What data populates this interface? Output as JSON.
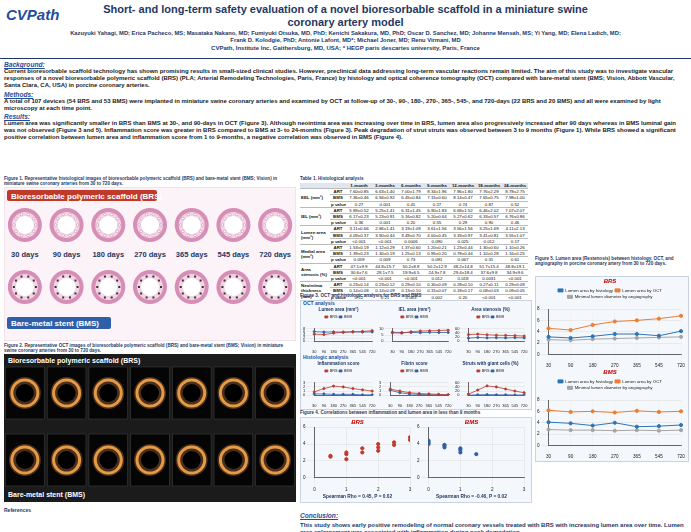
{
  "header": {
    "logo": "CVPath",
    "title": "Short- and long-term safety evaluation of a novel bioresorbable scaffold in a miniature swine coronary artery model",
    "authors": "Kazuyuki Yahagi, MD; Erica Pacheco, MS; Masataka Nakano, MD; Fumiyuki Otsuka, MD, PhD; Kenichi Sakakura, MD, PhD; Oscar D. Sanchez, MD; Johanne Mensah, MS; Yi Yang, MD; Elena Ladich, MD; Frank D. Kolodgie, PhD; Antonie Lafont, MD*; Michael Joner, MD; Renu Virmani, MD",
    "affiliation": "CVPath, Institute Inc, Gaithersburg, MD, USA; * HEGP paris descartes university, Paris, France"
  },
  "sections": [
    {
      "heading": "Background:",
      "text": "Current bioresorbable scaffold technology has shown promising results in small-sized clinical studies. However, preclinical data addressing long-term vascular reactions remain limited. The aim of this study was to investigate vascular responses of a novel bioresorbable polymeric scaffold (BRS) (PLA; Arterial Remodeling Technologies, Paris, France) by histology and optical coherence tomography (OCT) compared with bare-metal stent (BMS; Vision, Abbott Vascular, Santa Clara, CA, USA) in porcine coronary arteries."
    },
    {
      "heading": "Methods:",
      "text": "A total of 107 devices (54 BRS and 53 BMS) were implanted in miniature swine coronary arteries and examined by OCT at follow-up of 30-, 90-, 180-, 270-, 365-, 545-, and 720-days (22 BRS and 20 BMS) and all were examined by light microscopy at each time point."
    },
    {
      "heading": "Results:",
      "text": "Lumen area was significantly smaller in BRS than BMS at 30-, and 90-days in OCT (Figure 3). Although neointima area was increasing over time in BRS, lumen area also progressively increased after 90 days whereas in BMS luminal gain was not observed (Figure 3 and 5). Inflammation score was greater in BRS compared to BMS at 3- to 24-months (Figure 3). Peak degradation of strut struts was observed between 3 to 9 months (Figure 1). While BRS showed a significant positive correlation between lumen area and inflammation score from 1 to 9-months, a negative correlation was observed in BMS (Figure 4)."
    }
  ],
  "figure1": {
    "caption": "Figure 1. Representative histological images of bioresorbable polymeric scaffold (BRS) and bare-metal stent (BMS; Vision) in miniature swine coronary arteries from 30 to 720 days.",
    "top_label": "Bioresorbable polymeric scaffold (BRS)",
    "bottom_label": "Bare-metal stent (BMS)",
    "timepoints": [
      "30 days",
      "90 days",
      "180 days",
      "270 days",
      "365 days",
      "545 days",
      "720 days"
    ]
  },
  "figure2": {
    "caption": "Figure 2. Representative OCT images of bioresorbable polymeric scaffold (BRS) and bare-metal stent (BMS; Vision) in miniature swine coronary arteries from 30 to 720 days.",
    "top_label": "Bioresorbable polymeric scaffold (BRS)",
    "bottom_label": "Bare-metal stent (BMS)"
  },
  "table1": {
    "caption": "Table 1. Histological analysis",
    "columns": [
      "1-month",
      "3-months",
      "6-months",
      "9-months",
      "12-months",
      "18-months",
      "24-months"
    ],
    "rows": [
      {
        "label": "EEL (mm²)",
        "sub": [
          {
            "group": "ART",
            "cells": [
              "7.60±0.85",
              "6.63±1.40",
              "7.00±1.79",
              "8.34±1.96",
              "7.96±1.80",
              "7.76±2.29",
              "8.78±2.75"
            ]
          },
          {
            "group": "BMS",
            "cells": [
              "7.36±0.46",
              "6.94±0.92",
              "6.45±0.84",
              "7.15±0.60",
              "8.14±0.47",
              "7.65±0.75",
              "7.98±1.00"
            ]
          },
          {
            "group": "p value",
            "cells": [
              "0.27",
              "0.001",
              "0.41",
              "0.27",
              "0.74",
              "0.87",
              "0.52"
            ]
          }
        ]
      },
      {
        "label": "IEL (mm²)",
        "sub": [
          {
            "group": "ART",
            "cells": [
              "5.89±0.52",
              "5.25±1.41",
              "6.31±1.45",
              "6.90±1.83",
              "6.68±1.52",
              "6.46±2.02",
              "7.07±2.07"
            ]
          },
          {
            "group": "BMS",
            "cells": [
              "6.17±0.23",
              "5.23±0.91",
              "5.16±0.82",
              "5.20±0.64",
              "5.27±0.62",
              "6.33±0.57",
              "6.76±0.86"
            ]
          },
          {
            "group": "p value",
            "cells": [
              "0.36",
              "0.001",
              "0.20",
              "0.55",
              "0.29",
              "0.90",
              "0.46"
            ]
          }
        ]
      },
      {
        "label": "Lumen area (mm²)",
        "sub": [
          {
            "group": "ART",
            "cells": [
              "3.11±0.66",
              "2.86±1.41",
              "3.19±1.09",
              "3.61±1.56",
              "3.56±1.56",
              "3.25±1.69",
              "4.11±2.13"
            ]
          },
          {
            "group": "BMS",
            "cells": [
              "4.09±0.37",
              "3.90±0.44",
              "3.49±0.70",
              "4.00±0.45",
              "3.33±0.97",
              "3.41±0.81",
              "3.55±1.07"
            ]
          },
          {
            "group": "p value",
            "cells": [
              "<0.001",
              "<0.001",
              "0.0006",
              "0.090",
              "0.025",
              "0.012",
              "0.17"
            ]
          }
        ]
      },
      {
        "label": "Medial area (mm²)",
        "sub": [
          {
            "group": "ART",
            "cells": [
              "1.53±0.19",
              "1.12±0.29",
              "1.37±0.60",
              "1.20±0.21",
              "1.23±0.44",
              "1.30±0.60",
              "1.10±0.26"
            ]
          },
          {
            "group": "BMS",
            "cells": [
              "1.39±0.23",
              "1.30±0.19",
              "1.25±0.13",
              "0.95±0.20",
              "0.78±0.44",
              "1.10±0.28",
              "1.16±0.25"
            ]
          },
          {
            "group": "p value",
            "cells": [
              "0.059",
              "0.009",
              "0.73",
              "0.091",
              "0.067",
              "0.31",
              "0.61"
            ]
          }
        ]
      },
      {
        "label": "Area stenosis (%)",
        "sub": [
          {
            "group": "ART",
            "cells": [
              "47.1±9.9",
              "44.8±15.7",
              "50.2±8.8",
              "50.2±12.9",
              "48.2±14.8",
              "51.7±15.4",
              "48.8±19.1"
            ]
          },
          {
            "group": "BMS",
            "cells": [
              "30.6±7.6",
              "28.1±7.5",
              "19.9±6.5",
              "24.9±7.8",
              "29.4±18.4",
              "37.6±9.8",
              "34.9±9.6"
            ]
          },
          {
            "group": "p value",
            "cells": [
              "<0.001",
              "<0.001",
              "<0.001",
              "0.012",
              "0.018",
              "0.0031",
              "<0.001"
            ]
          }
        ]
      },
      {
        "label": "Neointima thickness (mm)",
        "sub": [
          {
            "group": "ART",
            "cells": [
              "0.23±0.14",
              "0.23±0.12",
              "0.29±0.10",
              "0.30±0.09",
              "0.28±0.10",
              "0.27±0.11",
              "0.29±0.09"
            ]
          },
          {
            "group": "BMS",
            "cells": [
              "0.14±0.08",
              "0.14±0.09",
              "0.13±0.10",
              "0.15±0.07",
              "0.18±0.17",
              "0.08±0.03",
              "0.09±0.05"
            ]
          },
          {
            "group": "p value",
            "cells": [
              "0.12",
              "0.21",
              "0.063",
              "0.002",
              "0.20",
              "<0.001",
              "<0.001"
            ]
          }
        ]
      }
    ]
  },
  "figure3": {
    "caption": "Figure 3. OCT and histologic analysis for BRS and BMS",
    "oct_label": "OCT analysis",
    "histo_label": "Histologic analysis"
  },
  "figure4": {
    "caption": "Figure 4. Correlations between inflammation and lumen area in less than 9 months"
  },
  "figure5": {
    "caption": "Figure 5. Lumen area (Restenosis) between histology, OCT, and angiography in porcine coronary artery from 30 to 720 days."
  },
  "references": {
    "heading": "References"
  },
  "conclusion": {
    "heading": "Conclusion:",
    "text": "This study shows early positive remodeling of normal coronary vessels treated with BRS with increasing lumen area over time. Lumen area enlargement was associated with inflammation during peak degradation."
  },
  "chart_data": [
    {
      "type": "line",
      "title": "Lumen area (mm²)",
      "categories": [
        "30",
        "90",
        "180",
        "270",
        "365",
        "545",
        "720"
      ],
      "series": [
        {
          "name": "BRS",
          "color": "#c0392b",
          "values": [
            4.6,
            4.3,
            5.2,
            5.8,
            6.0,
            6.3,
            6.8
          ]
        },
        {
          "name": "BMS",
          "color": "#2e5fa8",
          "values": [
            6.2,
            5.9,
            6.0,
            5.8,
            6.1,
            5.9,
            6.0
          ]
        }
      ],
      "ylim": [
        0,
        8
      ],
      "yticks": [
        0,
        2,
        4,
        6,
        8
      ],
      "grid": true,
      "legend": "top"
    },
    {
      "type": "line",
      "title": "IEL area (mm²)",
      "categories": [
        "30",
        "90",
        "180",
        "270",
        "365",
        "545",
        "720"
      ],
      "series": [
        {
          "name": "BRS",
          "color": "#c0392b",
          "values": [
            6.8,
            6.5,
            7.6,
            8.2,
            8.4,
            8.6,
            9.0
          ]
        },
        {
          "name": "BMS",
          "color": "#2e5fa8",
          "values": [
            7.2,
            7.0,
            7.1,
            6.9,
            7.2,
            7.0,
            7.1
          ]
        }
      ],
      "ylim": [
        0,
        10
      ],
      "yticks": [
        0,
        5,
        10
      ],
      "grid": true,
      "legend": "top"
    },
    {
      "type": "line",
      "title": "Area stenosis (%)",
      "categories": [
        "30",
        "90",
        "180",
        "270",
        "365",
        "545",
        "720"
      ],
      "series": [
        {
          "name": "BRS",
          "color": "#c0392b",
          "values": [
            32,
            34,
            31,
            29,
            28,
            27,
            25
          ]
        },
        {
          "name": "BMS",
          "color": "#2e5fa8",
          "values": [
            15,
            18,
            16,
            17,
            16,
            17,
            16
          ]
        }
      ],
      "ylim": [
        0,
        60
      ],
      "yticks": [
        0,
        20,
        40,
        60
      ],
      "grid": true,
      "legend": "top"
    },
    {
      "type": "line",
      "title": "Inflammation score",
      "categories": [
        "30",
        "90",
        "180",
        "270",
        "365",
        "545",
        "720"
      ],
      "series": [
        {
          "name": "BRS",
          "color": "#c0392b",
          "values": [
            0.8,
            1.6,
            2.2,
            2.0,
            1.6,
            1.3,
            1.0
          ]
        },
        {
          "name": "BMS",
          "color": "#2e5fa8",
          "values": [
            0.3,
            0.3,
            0.2,
            0.2,
            0.2,
            0.1,
            0.1
          ]
        }
      ],
      "ylim": [
        0,
        3
      ],
      "yticks": [
        0,
        1,
        2,
        3
      ],
      "grid": true,
      "legend": "top"
    },
    {
      "type": "line",
      "title": "Fibrin score",
      "categories": [
        "30",
        "90",
        "180",
        "270",
        "365",
        "545",
        "720"
      ],
      "series": [
        {
          "name": "BRS",
          "color": "#c0392b",
          "values": [
            1.5,
            1.0,
            0.6,
            0.4,
            0.3,
            0.2,
            0.1
          ]
        },
        {
          "name": "BMS",
          "color": "#2e5fa8",
          "values": [
            1.2,
            0.6,
            0.3,
            0.2,
            0.1,
            0.1,
            0.1
          ]
        }
      ],
      "ylim": [
        0,
        3
      ],
      "yticks": [
        0,
        1,
        2,
        3
      ],
      "grid": true,
      "legend": "top"
    },
    {
      "type": "line",
      "title": "Struts with giant cells (%)",
      "categories": [
        "30",
        "90",
        "180",
        "270",
        "365",
        "545",
        "720"
      ],
      "series": [
        {
          "name": "BRS",
          "color": "#c0392b",
          "values": [
            5,
            25,
            45,
            40,
            30,
            20,
            12
          ]
        },
        {
          "name": "BMS",
          "color": "#2e5fa8",
          "values": [
            0,
            2,
            3,
            2,
            2,
            1,
            1
          ]
        }
      ],
      "ylim": [
        0,
        60
      ],
      "yticks": [
        0,
        20,
        40,
        60
      ],
      "grid": true,
      "legend": "top"
    },
    {
      "type": "scatter",
      "title": "BRS",
      "annotation": "Spearman Rho = 0.45, P = 0.02",
      "series": [
        {
          "color": "#c0392b",
          "marker": "circle",
          "x": [
            0.5,
            1,
            1,
            1.5,
            2,
            2,
            2.5,
            3,
            1,
            0.5,
            1.5,
            2.5,
            3,
            2
          ],
          "values": [
            2.5,
            3,
            2.8,
            3.5,
            3.2,
            4,
            4.2,
            4.8,
            2.2,
            2.6,
            3.0,
            3.9,
            4.5,
            3.6
          ]
        }
      ],
      "xlim": [
        0,
        3
      ],
      "xticks": [
        0,
        1,
        2,
        3
      ],
      "ylim": [
        0,
        6
      ],
      "yticks": [
        0,
        2,
        4,
        6
      ],
      "grid": true
    },
    {
      "type": "scatter",
      "title": "BMS",
      "annotation": "Spearman Rho = -0.46, P = 0.02",
      "series": [
        {
          "color": "#2e5fa8",
          "marker": "circle",
          "x": [
            0,
            0,
            0.5,
            0.5,
            1,
            1,
            1.5,
            0,
            0.5,
            1
          ],
          "values": [
            4.2,
            4.0,
            3.9,
            3.6,
            3.3,
            3.0,
            2.8,
            4.4,
            3.8,
            3.5
          ]
        }
      ],
      "xlim": [
        0,
        3
      ],
      "xticks": [
        0,
        1,
        2,
        3
      ],
      "ylim": [
        0,
        6
      ],
      "yticks": [
        0,
        2,
        4,
        6
      ],
      "grid": true
    },
    {
      "type": "line",
      "title": "BRS",
      "categories": [
        "30",
        "90",
        "180",
        "270",
        "365",
        "545",
        "720"
      ],
      "series": [
        {
          "name": "Lumen area by histology",
          "color": "#2e75b6",
          "values": [
            3.1,
            2.9,
            3.2,
            3.6,
            3.6,
            3.3,
            4.1
          ]
        },
        {
          "name": "Lumen area by OCT",
          "color": "#ed7d31",
          "values": [
            4.6,
            4.3,
            5.2,
            5.8,
            6.0,
            6.3,
            6.8
          ]
        },
        {
          "name": "Minimal lumen diameter by angiography",
          "color": "#a5a5a5",
          "values": [
            2.6,
            2.5,
            2.7,
            2.8,
            2.9,
            3.0,
            3.1
          ]
        }
      ],
      "ylim": [
        0,
        8
      ],
      "yticks": [
        0,
        2,
        4,
        6,
        8
      ],
      "grid": true,
      "legend": "top"
    },
    {
      "type": "line",
      "title": "BMS",
      "categories": [
        "30",
        "90",
        "180",
        "270",
        "365",
        "545",
        "720"
      ],
      "series": [
        {
          "name": "Lumen area by histology",
          "color": "#2e75b6",
          "values": [
            4.1,
            3.9,
            3.5,
            4.0,
            3.3,
            3.4,
            3.6
          ]
        },
        {
          "name": "Lumen area by OCT",
          "color": "#ed7d31",
          "values": [
            6.2,
            5.9,
            6.0,
            5.8,
            6.1,
            5.9,
            6.0
          ]
        },
        {
          "name": "Minimal lumen diameter by angiography",
          "color": "#a5a5a5",
          "values": [
            2.8,
            2.7,
            2.7,
            2.6,
            2.7,
            2.6,
            2.7
          ]
        }
      ],
      "ylim": [
        0,
        8
      ],
      "yticks": [
        0,
        2,
        4,
        6,
        8
      ],
      "grid": true,
      "legend": "top"
    }
  ]
}
